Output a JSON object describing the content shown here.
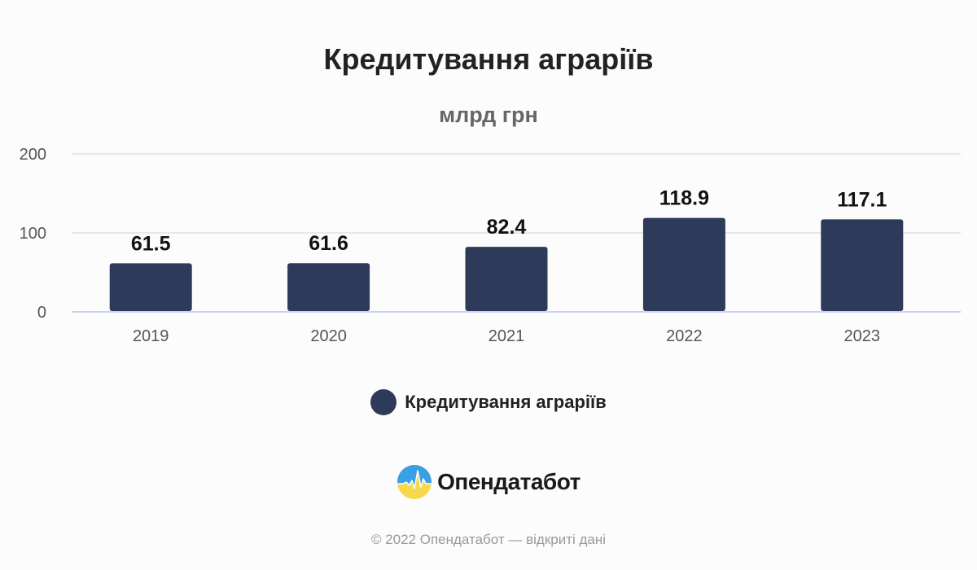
{
  "chart_data": {
    "type": "bar",
    "title": "Кредитування аграріїв",
    "subtitle": "млрд грн",
    "categories": [
      "2019",
      "2020",
      "2021",
      "2022",
      "2023"
    ],
    "series": [
      {
        "name": "Кредитування аграріїв",
        "values": [
          61.5,
          61.6,
          82.4,
          118.9,
          117.1
        ],
        "value_labels": [
          "61.5",
          "61.6",
          "82.4",
          "118.9",
          "117.1"
        ],
        "color": "#2d3a5a"
      }
    ],
    "ylim": [
      0,
      200
    ],
    "yticks": [
      0,
      100,
      200
    ],
    "ytick_labels": [
      "0",
      "100",
      "200"
    ],
    "grid": true,
    "legend": "bottom"
  },
  "brand": {
    "name": "Опендатабот",
    "logo_icon": "opendatabot-logo-icon"
  },
  "footer": {
    "text": "© 2022 Опендатабот — відкриті дані"
  },
  "colors": {
    "bar": "#2d3a5a",
    "grid": "#dde1e8",
    "baseline": "#c8d2f0"
  }
}
